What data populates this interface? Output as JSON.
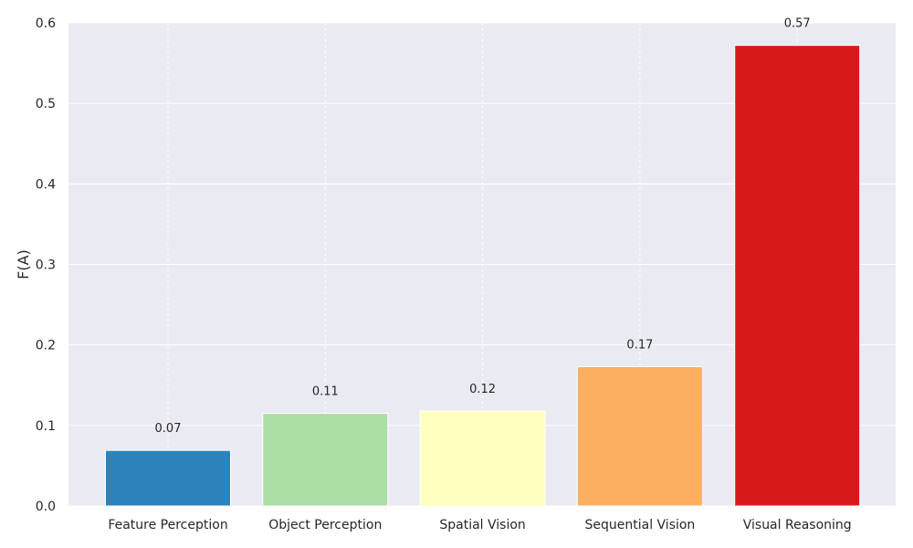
{
  "chart_data": {
    "type": "bar",
    "categories": [
      "Feature Perception",
      "Object Perception",
      "Spatial Vision",
      "Sequential Vision",
      "Visual Reasoning"
    ],
    "values": [
      0.069,
      0.115,
      0.118,
      0.173,
      0.572
    ],
    "value_labels": [
      "0.07",
      "0.11",
      "0.12",
      "0.17",
      "0.57"
    ],
    "colors": [
      "#2b83ba",
      "#abdda4",
      "#ffffbf",
      "#fdae61",
      "#d7191c"
    ],
    "title": "",
    "xlabel": "",
    "ylabel": "F(A)",
    "ylim": [
      0,
      0.6
    ],
    "yticks": [
      0.0,
      0.1,
      0.2,
      0.3,
      0.4,
      0.5,
      0.6
    ],
    "ytick_labels": [
      "0.0",
      "0.1",
      "0.2",
      "0.3",
      "0.4",
      "0.5",
      "0.6"
    ],
    "grid": true,
    "background": "#eaeaf2"
  }
}
